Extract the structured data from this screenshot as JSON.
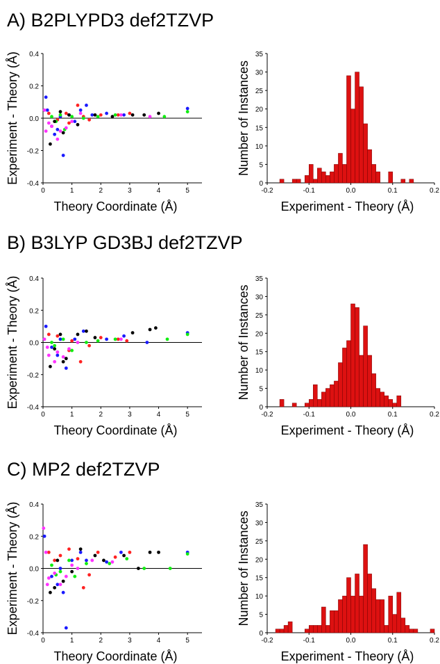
{
  "panel_titles": [
    "A) B2PLYPD3 def2TZVP",
    "B) B3LYP GD3BJ def2TZVP",
    "C) MP2 def2TZVP"
  ],
  "colors": {
    "bar": "#dd1111",
    "series": [
      "#1a1aff",
      "#ff2222",
      "#11ee11",
      "#ff33ff",
      "#000000"
    ]
  },
  "chart_data": [
    {
      "panel": "A",
      "type": "scatter",
      "xlabel": "Theory Coordinate (Å)",
      "ylabel": "Experiment - Theory (Å)",
      "xlim": [
        0,
        5.5
      ],
      "ylim": [
        -0.4,
        0.4
      ],
      "xticks": [
        "0",
        "1",
        "2",
        "3",
        "4",
        "5"
      ],
      "yticks": [
        "-0.4",
        "-0.2",
        "0.0",
        "0.2",
        "0.4"
      ],
      "series": [
        {
          "color": "blue",
          "points": [
            [
              0.1,
              0.13
            ],
            [
              0.15,
              0.05
            ],
            [
              0.3,
              -0.05
            ],
            [
              0.5,
              -0.07
            ],
            [
              0.7,
              -0.23
            ],
            [
              0.9,
              0.02
            ],
            [
              1.1,
              -0.02
            ],
            [
              1.3,
              0.05
            ],
            [
              1.5,
              0.08
            ],
            [
              1.7,
              0.02
            ],
            [
              2.2,
              0.03
            ],
            [
              2.8,
              0.02
            ],
            [
              5.0,
              0.06
            ],
            [
              0.4,
              -0.1
            ],
            [
              0.6,
              0.01
            ]
          ]
        },
        {
          "color": "red",
          "points": [
            [
              0.2,
              0.03
            ],
            [
              0.5,
              -0.01
            ],
            [
              0.8,
              0.03
            ],
            [
              1.2,
              0.08
            ],
            [
              1.6,
              -0.01
            ],
            [
              2.0,
              0.02
            ],
            [
              2.6,
              0.02
            ],
            [
              3.0,
              0.03
            ],
            [
              0.9,
              -0.03
            ],
            [
              1.4,
              0.01
            ]
          ]
        },
        {
          "color": "green",
          "points": [
            [
              0.3,
              0.01
            ],
            [
              0.6,
              0.02
            ],
            [
              0.75,
              -0.07
            ],
            [
              1.0,
              0.01
            ],
            [
              1.4,
              0.0
            ],
            [
              1.9,
              0.01
            ],
            [
              2.5,
              0.02
            ],
            [
              4.2,
              0.01
            ],
            [
              5.0,
              0.04
            ],
            [
              0.45,
              -0.02
            ]
          ]
        },
        {
          "color": "magenta",
          "points": [
            [
              0.05,
              0.05
            ],
            [
              0.1,
              -0.08
            ],
            [
              0.3,
              -0.05
            ],
            [
              0.5,
              -0.13
            ],
            [
              0.6,
              -0.08
            ],
            [
              0.8,
              -0.06
            ],
            [
              1.0,
              -0.02
            ],
            [
              1.3,
              0.03
            ],
            [
              2.7,
              0.02
            ],
            [
              3.7,
              0.01
            ],
            [
              0.2,
              -0.03
            ]
          ]
        },
        {
          "color": "black",
          "points": [
            [
              0.25,
              -0.16
            ],
            [
              0.4,
              -0.02
            ],
            [
              0.6,
              0.04
            ],
            [
              0.9,
              0.02
            ],
            [
              1.2,
              -0.04
            ],
            [
              1.8,
              0.02
            ],
            [
              2.4,
              0.01
            ],
            [
              3.1,
              0.02
            ],
            [
              3.5,
              0.02
            ],
            [
              4.0,
              0.03
            ],
            [
              0.7,
              -0.09
            ]
          ]
        }
      ]
    },
    {
      "panel": "A",
      "type": "bar",
      "xlabel": "Experiment - Theory (Å)",
      "ylabel": "Number of Instances",
      "xlim": [
        -0.2,
        0.2
      ],
      "ylim": [
        0,
        35
      ],
      "xticks": [
        "-0.2",
        "-0.1",
        "0.0",
        "0.1",
        "0.2"
      ],
      "yticks": [
        "0",
        "5",
        "10",
        "15",
        "20",
        "25",
        "30",
        "35"
      ],
      "bin_width": 0.01,
      "bins": [
        [
          -0.17,
          1
        ],
        [
          -0.14,
          1
        ],
        [
          -0.13,
          1
        ],
        [
          -0.11,
          2
        ],
        [
          -0.1,
          5
        ],
        [
          -0.09,
          1
        ],
        [
          -0.08,
          4
        ],
        [
          -0.07,
          3
        ],
        [
          -0.06,
          2
        ],
        [
          -0.05,
          3
        ],
        [
          -0.04,
          5
        ],
        [
          -0.03,
          8
        ],
        [
          -0.02,
          5
        ],
        [
          -0.01,
          29
        ],
        [
          0.0,
          20
        ],
        [
          0.01,
          30
        ],
        [
          0.02,
          26
        ],
        [
          0.03,
          16
        ],
        [
          0.04,
          9
        ],
        [
          0.05,
          5
        ],
        [
          0.06,
          3
        ],
        [
          0.09,
          3
        ],
        [
          0.12,
          1
        ],
        [
          0.14,
          1
        ]
      ]
    },
    {
      "panel": "B",
      "type": "scatter",
      "xlabel": "Theory Coordinate (Å)",
      "ylabel": "Experiment - Theory (Å)",
      "xlim": [
        0,
        5.5
      ],
      "ylim": [
        -0.4,
        0.4
      ],
      "xticks": [
        "0",
        "1",
        "2",
        "3",
        "4",
        "5"
      ],
      "yticks": [
        "-0.4",
        "-0.2",
        "0.0",
        "0.2",
        "0.4"
      ],
      "series": [
        {
          "color": "blue",
          "points": [
            [
              0.1,
              0.1
            ],
            [
              0.3,
              -0.03
            ],
            [
              0.5,
              -0.08
            ],
            [
              0.8,
              -0.16
            ],
            [
              1.1,
              0.02
            ],
            [
              1.4,
              0.07
            ],
            [
              2.2,
              0.02
            ],
            [
              2.8,
              0.04
            ],
            [
              3.6,
              0.0
            ],
            [
              5.0,
              0.06
            ],
            [
              0.6,
              0.02
            ]
          ]
        },
        {
          "color": "red",
          "points": [
            [
              0.2,
              0.05
            ],
            [
              0.5,
              0.04
            ],
            [
              0.9,
              -0.05
            ],
            [
              1.3,
              -0.12
            ],
            [
              1.6,
              -0.02
            ],
            [
              2.0,
              0.03
            ],
            [
              2.6,
              0.02
            ],
            [
              2.9,
              0.01
            ],
            [
              1.0,
              0.01
            ]
          ]
        },
        {
          "color": "green",
          "points": [
            [
              0.3,
              0.0
            ],
            [
              0.7,
              0.02
            ],
            [
              1.0,
              -0.05
            ],
            [
              1.5,
              0.0
            ],
            [
              1.9,
              0.01
            ],
            [
              2.5,
              0.02
            ],
            [
              4.3,
              0.02
            ],
            [
              5.0,
              0.05
            ],
            [
              0.4,
              -0.02
            ]
          ]
        },
        {
          "color": "magenta",
          "points": [
            [
              0.05,
              0.02
            ],
            [
              0.2,
              -0.08
            ],
            [
              0.4,
              -0.12
            ],
            [
              0.5,
              -0.06
            ],
            [
              0.7,
              -0.09
            ],
            [
              0.9,
              -0.04
            ],
            [
              1.2,
              0.0
            ],
            [
              2.7,
              0.02
            ],
            [
              0.15,
              -0.03
            ]
          ]
        },
        {
          "color": "black",
          "points": [
            [
              0.25,
              -0.15
            ],
            [
              0.4,
              -0.04
            ],
            [
              0.6,
              0.05
            ],
            [
              0.8,
              -0.1
            ],
            [
              1.2,
              0.05
            ],
            [
              1.5,
              0.07
            ],
            [
              1.8,
              0.03
            ],
            [
              3.1,
              0.06
            ],
            [
              3.7,
              0.08
            ],
            [
              3.9,
              0.09
            ],
            [
              0.7,
              -0.12
            ]
          ]
        }
      ]
    },
    {
      "panel": "B",
      "type": "bar",
      "xlabel": "Experiment - Theory (Å)",
      "ylabel": "Number of Instances",
      "xlim": [
        -0.2,
        0.2
      ],
      "ylim": [
        0,
        35
      ],
      "xticks": [
        "-0.2",
        "-0.1",
        "0.0",
        "0.1",
        "0.2"
      ],
      "yticks": [
        "0",
        "5",
        "10",
        "15",
        "20",
        "25",
        "30",
        "35"
      ],
      "bin_width": 0.01,
      "bins": [
        [
          -0.17,
          2
        ],
        [
          -0.14,
          1
        ],
        [
          -0.11,
          1
        ],
        [
          -0.1,
          2
        ],
        [
          -0.09,
          6
        ],
        [
          -0.08,
          2
        ],
        [
          -0.07,
          4
        ],
        [
          -0.06,
          5
        ],
        [
          -0.05,
          6
        ],
        [
          -0.04,
          7
        ],
        [
          -0.03,
          12
        ],
        [
          -0.02,
          16
        ],
        [
          -0.01,
          18
        ],
        [
          0.0,
          28
        ],
        [
          0.01,
          27
        ],
        [
          0.02,
          14
        ],
        [
          0.03,
          22
        ],
        [
          0.04,
          14
        ],
        [
          0.05,
          9
        ],
        [
          0.06,
          5
        ],
        [
          0.07,
          4
        ],
        [
          0.08,
          3
        ],
        [
          0.09,
          2
        ],
        [
          0.1,
          1
        ],
        [
          0.11,
          3
        ]
      ]
    },
    {
      "panel": "C",
      "type": "scatter",
      "xlabel": "Theory Coordinate (Å)",
      "ylabel": "Experiment - Theory (Å)",
      "xlim": [
        0,
        5.5
      ],
      "ylim": [
        -0.4,
        0.4
      ],
      "xticks": [
        "0",
        "1",
        "2",
        "3",
        "4",
        "5"
      ],
      "yticks": [
        "-0.4",
        "-0.2",
        "0.0",
        "0.2",
        "0.4"
      ],
      "series": [
        {
          "color": "blue",
          "points": [
            [
              0.05,
              0.2
            ],
            [
              0.3,
              -0.05
            ],
            [
              0.5,
              -0.1
            ],
            [
              0.7,
              -0.15
            ],
            [
              0.8,
              -0.37
            ],
            [
              1.0,
              0.05
            ],
            [
              1.3,
              0.1
            ],
            [
              1.5,
              0.05
            ],
            [
              2.2,
              0.04
            ],
            [
              2.7,
              0.1
            ],
            [
              5.0,
              0.1
            ],
            [
              0.6,
              0.0
            ]
          ]
        },
        {
          "color": "red",
          "points": [
            [
              0.2,
              0.1
            ],
            [
              0.4,
              0.05
            ],
            [
              0.6,
              0.08
            ],
            [
              0.9,
              0.12
            ],
            [
              1.2,
              0.06
            ],
            [
              1.6,
              -0.04
            ],
            [
              1.9,
              0.1
            ],
            [
              2.5,
              0.07
            ],
            [
              3.0,
              0.1
            ],
            [
              1.4,
              -0.12
            ]
          ]
        },
        {
          "color": "green",
          "points": [
            [
              0.3,
              0.02
            ],
            [
              0.6,
              -0.02
            ],
            [
              0.9,
              0.05
            ],
            [
              1.1,
              -0.05
            ],
            [
              1.5,
              0.03
            ],
            [
              2.3,
              0.03
            ],
            [
              2.9,
              0.06
            ],
            [
              3.5,
              0.0
            ],
            [
              4.4,
              0.0
            ],
            [
              5.0,
              0.09
            ],
            [
              0.45,
              -0.04
            ]
          ]
        },
        {
          "color": "magenta",
          "points": [
            [
              0.02,
              0.25
            ],
            [
              0.1,
              0.1
            ],
            [
              0.2,
              -0.06
            ],
            [
              0.4,
              -0.03
            ],
            [
              0.6,
              -0.1
            ],
            [
              0.8,
              -0.05
            ],
            [
              1.0,
              0.02
            ],
            [
              1.2,
              0.0
            ],
            [
              1.7,
              0.05
            ],
            [
              2.4,
              0.04
            ],
            [
              0.15,
              -0.1
            ]
          ]
        },
        {
          "color": "black",
          "points": [
            [
              0.25,
              -0.15
            ],
            [
              0.5,
              0.05
            ],
            [
              0.7,
              -0.08
            ],
            [
              1.0,
              -0.02
            ],
            [
              1.3,
              0.12
            ],
            [
              1.8,
              0.08
            ],
            [
              2.1,
              0.05
            ],
            [
              2.8,
              0.08
            ],
            [
              3.3,
              0.0
            ],
            [
              3.7,
              0.1
            ],
            [
              4.0,
              0.1
            ],
            [
              0.4,
              -0.12
            ]
          ]
        }
      ]
    },
    {
      "panel": "C",
      "type": "bar",
      "xlabel": "Experiment - Theory (Å)",
      "ylabel": "Number of Instances",
      "xlim": [
        -0.2,
        0.2
      ],
      "ylim": [
        0,
        35
      ],
      "xticks": [
        "-0.2",
        "-0.1",
        "0.0",
        "0.1",
        "0.2"
      ],
      "yticks": [
        "0",
        "5",
        "10",
        "15",
        "20",
        "25",
        "30",
        "35"
      ],
      "bin_width": 0.01,
      "bins": [
        [
          -0.18,
          1
        ],
        [
          -0.17,
          1
        ],
        [
          -0.16,
          2
        ],
        [
          -0.15,
          3
        ],
        [
          -0.11,
          1
        ],
        [
          -0.1,
          2
        ],
        [
          -0.09,
          2
        ],
        [
          -0.08,
          2
        ],
        [
          -0.07,
          7
        ],
        [
          -0.06,
          2
        ],
        [
          -0.05,
          6
        ],
        [
          -0.04,
          6
        ],
        [
          -0.03,
          9
        ],
        [
          -0.02,
          10
        ],
        [
          -0.01,
          15
        ],
        [
          0.0,
          10
        ],
        [
          0.01,
          16
        ],
        [
          0.02,
          10
        ],
        [
          0.03,
          24
        ],
        [
          0.04,
          16
        ],
        [
          0.05,
          12
        ],
        [
          0.06,
          9
        ],
        [
          0.07,
          9
        ],
        [
          0.08,
          2
        ],
        [
          0.09,
          10
        ],
        [
          0.1,
          5
        ],
        [
          0.11,
          11
        ],
        [
          0.12,
          4
        ],
        [
          0.13,
          2
        ],
        [
          0.14,
          1
        ],
        [
          0.15,
          1
        ],
        [
          0.19,
          1
        ]
      ]
    }
  ]
}
